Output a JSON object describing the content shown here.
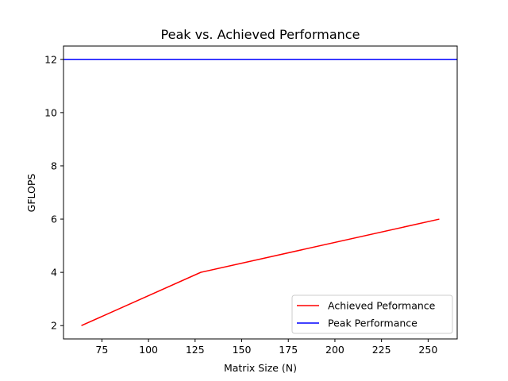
{
  "chart_data": {
    "type": "line",
    "title": "Peak vs. Achieved Performance",
    "xlabel": "Matrix Size (N)",
    "ylabel": "GFLOPS",
    "xlim": [
      54.4,
      265.6
    ],
    "ylim": [
      1.5,
      12.5
    ],
    "xticks": [
      75,
      100,
      125,
      150,
      175,
      200,
      225,
      250
    ],
    "yticks": [
      2,
      4,
      6,
      8,
      10,
      12
    ],
    "grid": false,
    "legend_position": "lower-right",
    "series": [
      {
        "name": "Achieved Peformance",
        "color": "#ff0000",
        "x": [
          64,
          128,
          256
        ],
        "y": [
          2,
          4,
          6
        ]
      },
      {
        "name": "Peak Performance",
        "color": "#0000ff",
        "x": [
          54.4,
          265.6
        ],
        "y": [
          12,
          12
        ]
      }
    ]
  }
}
